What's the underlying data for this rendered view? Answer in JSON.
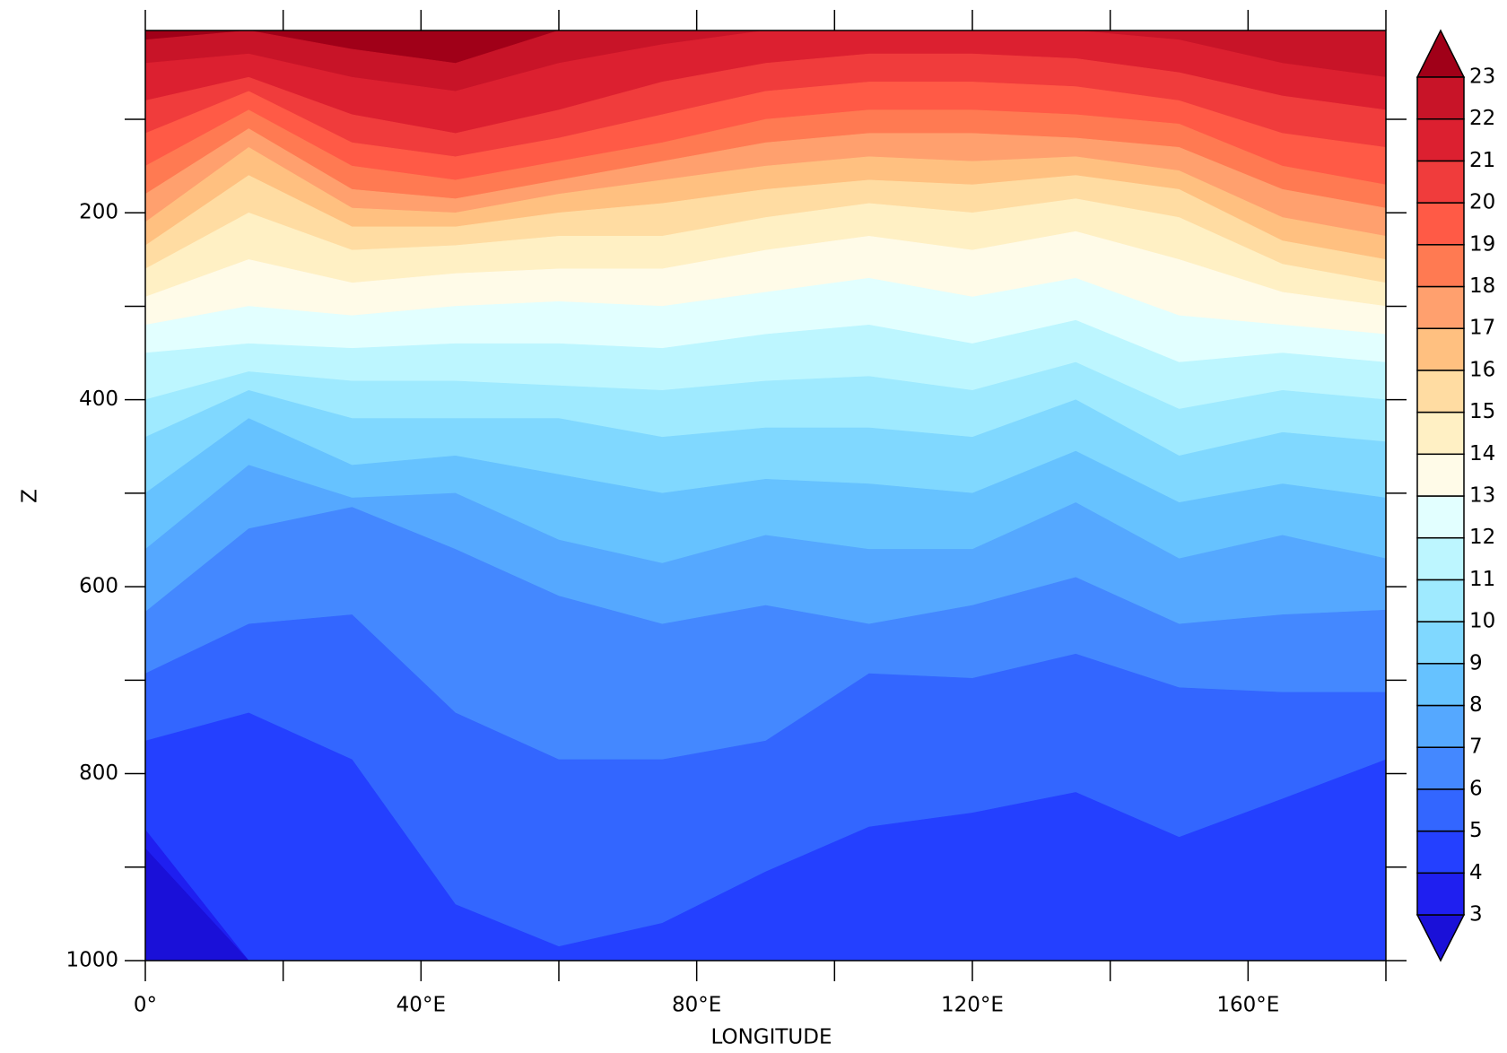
{
  "chart_data": {
    "type": "contour",
    "x_label": "LONGITUDE",
    "y_label": "Z",
    "x": [
      0,
      15,
      30,
      45,
      60,
      75,
      90,
      105,
      120,
      135,
      150,
      165,
      180
    ],
    "levels": [
      {
        "level": 3,
        "depths": [
          880,
          1000,
          1000,
          1000,
          1000,
          1000,
          1000,
          1000,
          1000,
          1000,
          1000,
          1000,
          1000
        ]
      },
      {
        "level": 4,
        "depths": [
          860,
          1000,
          1000,
          1000,
          1000,
          1000,
          1000,
          1000,
          1000,
          1000,
          1000,
          1000,
          1000
        ]
      },
      {
        "level": 5,
        "depths": [
          765,
          735,
          785,
          940,
          985,
          960,
          905,
          857,
          842,
          820,
          868,
          827,
          785
        ]
      },
      {
        "level": 6,
        "depths": [
          693,
          640,
          630,
          735,
          785,
          785,
          765,
          693,
          698,
          672,
          708,
          713,
          713
        ]
      },
      {
        "level": 7,
        "depths": [
          627,
          538,
          515,
          560,
          610,
          640,
          620,
          640,
          620,
          590,
          640,
          630,
          625
        ]
      },
      {
        "level": 8,
        "depths": [
          560,
          470,
          505,
          500,
          550,
          575,
          545,
          560,
          560,
          510,
          570,
          545,
          570
        ]
      },
      {
        "level": 9,
        "depths": [
          500,
          420,
          470,
          460,
          480,
          500,
          485,
          490,
          500,
          455,
          510,
          490,
          505
        ]
      },
      {
        "level": 10,
        "depths": [
          440,
          390,
          420,
          420,
          420,
          440,
          430,
          430,
          440,
          400,
          460,
          435,
          445
        ]
      },
      {
        "level": 11,
        "depths": [
          400,
          370,
          380,
          380,
          385,
          390,
          380,
          375,
          390,
          360,
          410,
          390,
          400
        ]
      },
      {
        "level": 12,
        "depths": [
          350,
          340,
          345,
          340,
          340,
          345,
          330,
          320,
          340,
          315,
          360,
          350,
          360
        ]
      },
      {
        "level": 13,
        "depths": [
          320,
          300,
          310,
          300,
          295,
          300,
          285,
          270,
          290,
          270,
          310,
          320,
          330
        ]
      },
      {
        "level": 14,
        "depths": [
          290,
          250,
          275,
          265,
          260,
          260,
          240,
          225,
          240,
          220,
          250,
          285,
          300
        ]
      },
      {
        "level": 15,
        "depths": [
          260,
          200,
          240,
          235,
          225,
          225,
          205,
          190,
          200,
          185,
          205,
          255,
          275
        ]
      },
      {
        "level": 16,
        "depths": [
          235,
          160,
          215,
          215,
          200,
          190,
          175,
          165,
          170,
          160,
          175,
          230,
          250
        ]
      },
      {
        "level": 17,
        "depths": [
          210,
          130,
          195,
          200,
          180,
          165,
          150,
          140,
          145,
          140,
          155,
          205,
          225
        ]
      },
      {
        "level": 18,
        "depths": [
          180,
          110,
          175,
          185,
          165,
          145,
          125,
          115,
          115,
          120,
          130,
          175,
          195
        ]
      },
      {
        "level": 19,
        "depths": [
          150,
          90,
          150,
          165,
          145,
          125,
          100,
          90,
          90,
          95,
          105,
          150,
          170
        ]
      },
      {
        "level": 20,
        "depths": [
          115,
          70,
          125,
          140,
          120,
          95,
          70,
          60,
          60,
          65,
          80,
          115,
          130
        ]
      },
      {
        "level": 21,
        "depths": [
          80,
          55,
          95,
          115,
          90,
          60,
          40,
          30,
          30,
          35,
          50,
          75,
          90
        ]
      },
      {
        "level": 22,
        "depths": [
          40,
          30,
          55,
          70,
          40,
          20,
          5,
          5,
          5,
          5,
          15,
          40,
          55
        ]
      },
      {
        "level": 23,
        "depths": [
          15,
          5,
          25,
          40,
          5,
          5,
          5,
          5,
          5,
          5,
          5,
          5,
          5
        ]
      }
    ],
    "colors": [
      "#1a10d8",
      "#1f1ff0",
      "#2440ff",
      "#3366ff",
      "#4488ff",
      "#55a8ff",
      "#66c2ff",
      "#80d8ff",
      "#9feaff",
      "#bdf6ff",
      "#e2ffff",
      "#fffbe8",
      "#fff0c4",
      "#ffdca2",
      "#ffc080",
      "#ffa06e",
      "#ff7a52",
      "#ff5a46",
      "#f03c3c",
      "#dc2030",
      "#c81428",
      "#a00018"
    ],
    "xlim": [
      0,
      180
    ],
    "ylim": [
      1000,
      5
    ],
    "xticks": [
      {
        "value": 0,
        "label": "0°"
      },
      {
        "value": 40,
        "label": "40°E"
      },
      {
        "value": 80,
        "label": "80°E"
      },
      {
        "value": 120,
        "label": "120°E"
      },
      {
        "value": 160,
        "label": "160°E"
      }
    ],
    "xminorticks": [
      20,
      60,
      100,
      140,
      180
    ],
    "yticks": [
      200,
      400,
      600,
      800,
      1000
    ],
    "yminorticks": [
      100,
      300,
      500,
      700,
      900
    ]
  }
}
